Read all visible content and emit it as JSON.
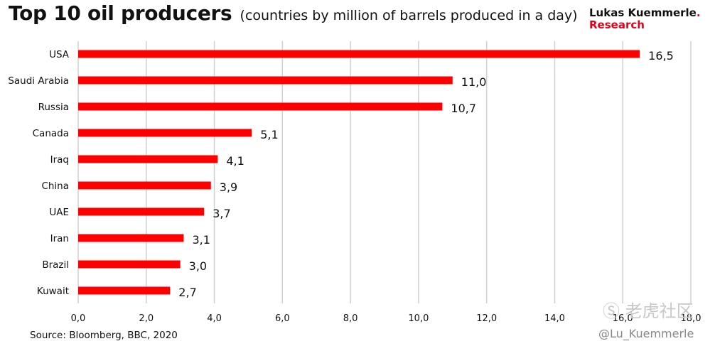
{
  "header": {
    "title": "Top 10 oil producers",
    "subtitle": "(countries by million of barrels produced in a day)",
    "brand_line1": "Lukas Kuemmerle",
    "brand_dot": ".",
    "brand_line2": "Research"
  },
  "footer": {
    "source": "Source: Bloomberg, BBC, 2020",
    "handle": "@Lu_Kuemmerle",
    "watermark": "Ⓢ 老虎社区"
  },
  "chart_data": {
    "type": "bar",
    "orientation": "horizontal",
    "categories": [
      "USA",
      "Saudi Arabia",
      "Russia",
      "Canada",
      "Iraq",
      "China",
      "UAE",
      "Iran",
      "Brazil",
      "Kuwait"
    ],
    "values": [
      16.5,
      11.0,
      10.7,
      5.1,
      4.1,
      3.9,
      3.7,
      3.1,
      3.0,
      2.7
    ],
    "value_labels": [
      "16,5",
      "11,0",
      "10,7",
      "5,1",
      "4,1",
      "3,9",
      "3,7",
      "3,1",
      "3,0",
      "2,7"
    ],
    "xlim": [
      0,
      18
    ],
    "x_ticks": [
      0,
      2,
      4,
      6,
      8,
      10,
      12,
      14,
      16,
      18
    ],
    "x_tick_labels": [
      "0,0",
      "2,0",
      "4,0",
      "6,0",
      "8,0",
      "10,0",
      "12,0",
      "14,0",
      "16,0",
      "18,0"
    ],
    "grid": "vertical",
    "bar_color": "#ff0000",
    "grid_color": "#d0d0d0"
  }
}
